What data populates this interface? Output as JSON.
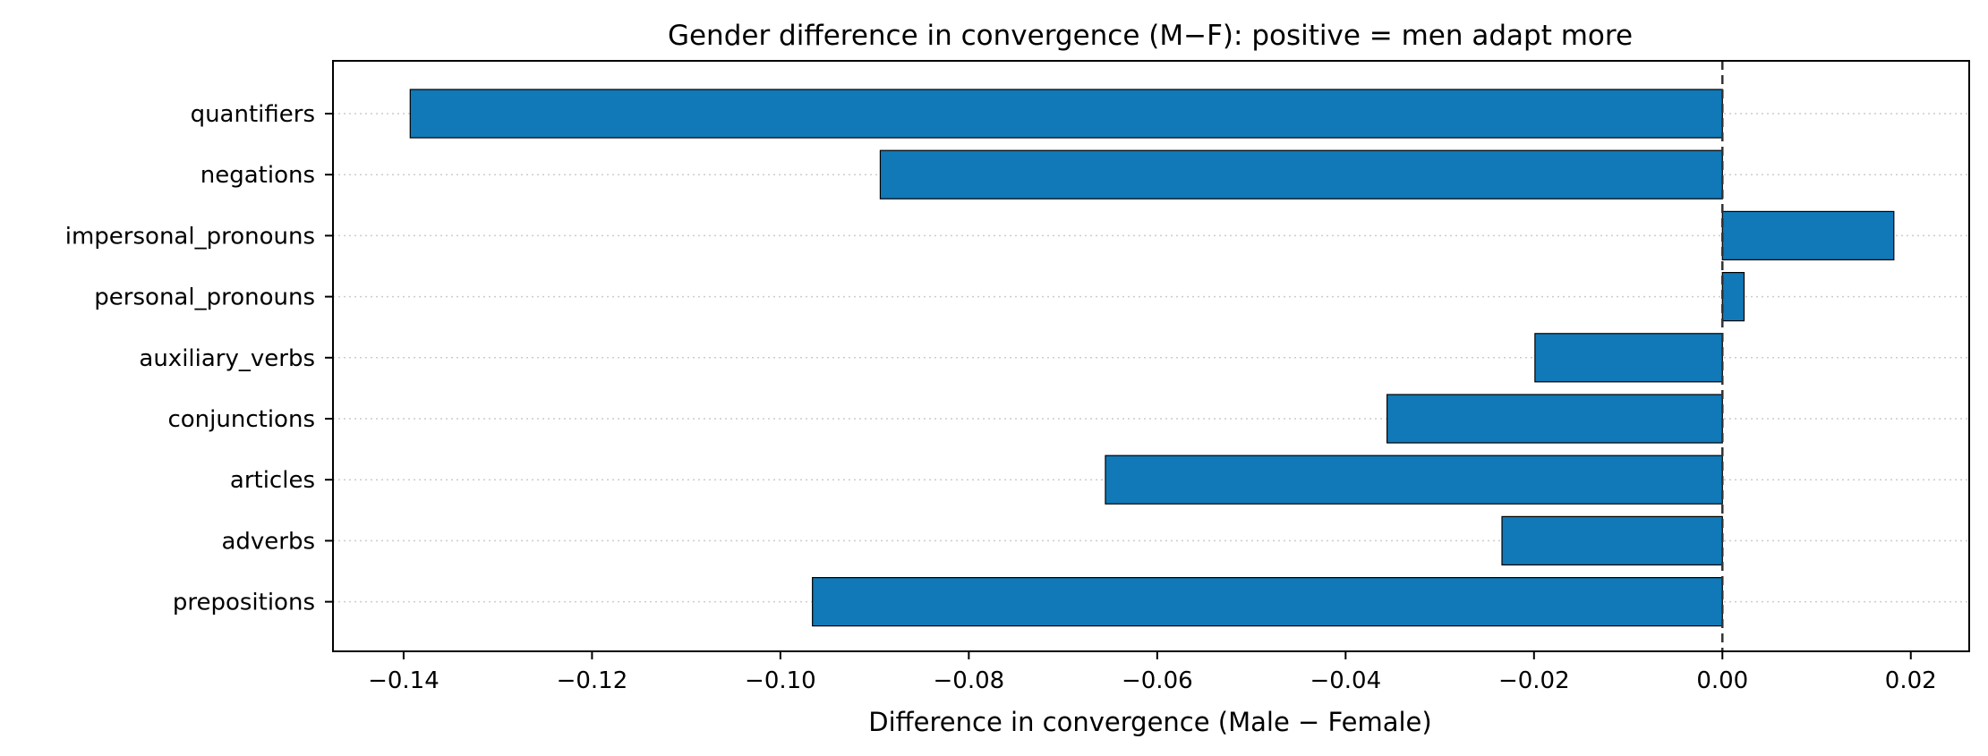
{
  "chart_data": {
    "type": "bar",
    "orientation": "horizontal",
    "title": "Gender difference in convergence (M−F): positive = men adapt more",
    "xlabel": "Difference in convergence (Male − Female)",
    "ylabel": "",
    "categories": [
      "quantifiers",
      "negations",
      "impersonal_pronouns",
      "personal_pronouns",
      "auxiliary_verbs",
      "conjunctions",
      "articles",
      "adverbs",
      "prepositions"
    ],
    "values": [
      -0.1393,
      -0.0894,
      0.0182,
      0.0023,
      -0.0199,
      -0.0356,
      -0.0655,
      -0.0234,
      -0.0966
    ],
    "xlim": [
      -0.1475,
      0.0262
    ],
    "xticks": [
      -0.14,
      -0.12,
      -0.1,
      -0.08,
      -0.06,
      -0.04,
      -0.02,
      0.0,
      0.02
    ],
    "xtick_labels": [
      "−0.14",
      "−0.12",
      "−0.10",
      "−0.08",
      "−0.06",
      "−0.04",
      "−0.02",
      "0.00",
      "0.02"
    ],
    "grid": "horizontal dotted",
    "reference_line": 0,
    "legend": "none",
    "colors": {
      "bar_fill": "#1179b7",
      "bar_edge": "#000000",
      "grid": "#cccccc",
      "reference_line": "#333333",
      "axes": "#000000"
    }
  }
}
